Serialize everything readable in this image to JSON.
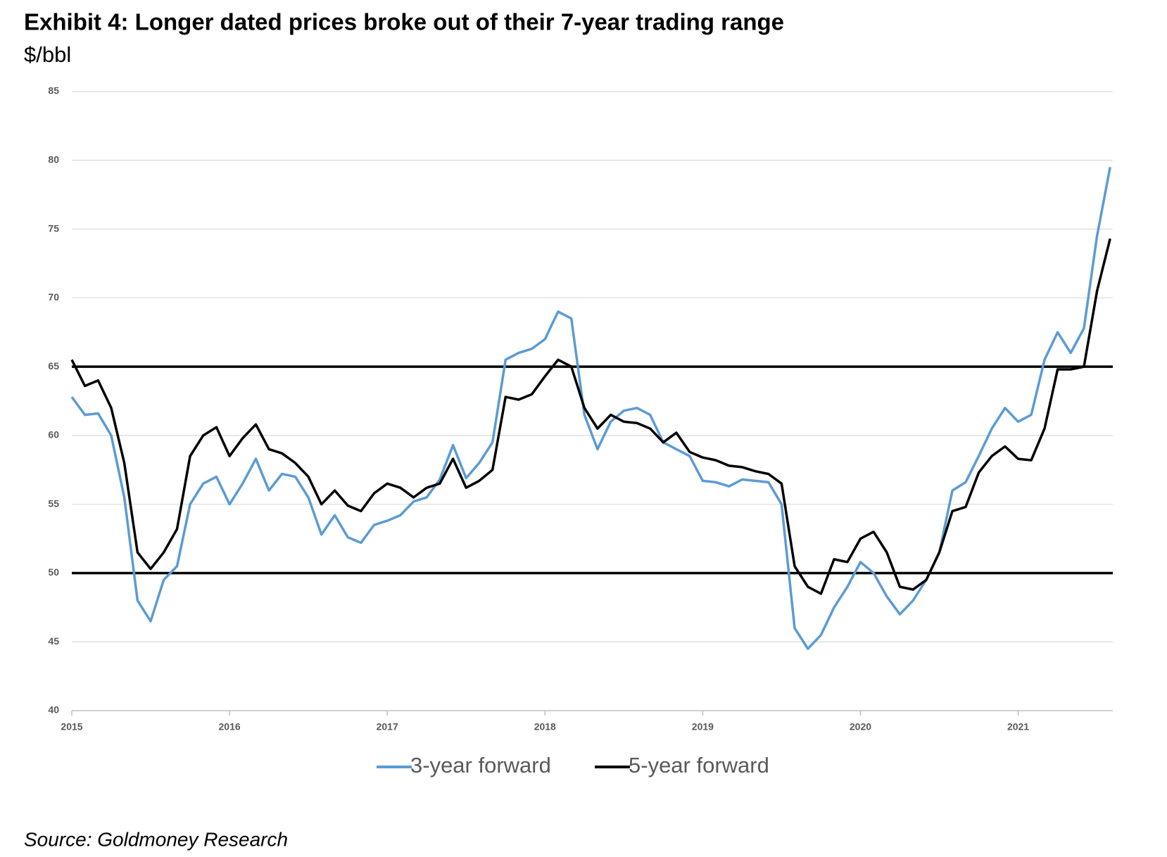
{
  "chart_data": {
    "type": "line",
    "title": "Exhibit 4: Longer dated prices broke out of their 7-year trading range",
    "subtitle": "$/bbl",
    "source": "Source: Goldmoney Research",
    "x": [
      2015,
      2015.083,
      2015.167,
      2015.25,
      2015.333,
      2015.417,
      2015.5,
      2015.583,
      2015.667,
      2015.75,
      2015.833,
      2015.917,
      2016,
      2016.083,
      2016.167,
      2016.25,
      2016.333,
      2016.417,
      2016.5,
      2016.583,
      2016.667,
      2016.75,
      2016.833,
      2016.917,
      2017,
      2017.083,
      2017.167,
      2017.25,
      2017.333,
      2017.417,
      2017.5,
      2017.583,
      2017.667,
      2017.75,
      2017.833,
      2017.917,
      2018,
      2018.083,
      2018.167,
      2018.25,
      2018.333,
      2018.417,
      2018.5,
      2018.583,
      2018.667,
      2018.75,
      2018.833,
      2018.917,
      2019,
      2019.083,
      2019.167,
      2019.25,
      2019.333,
      2019.417,
      2019.5,
      2019.583,
      2019.667,
      2019.75,
      2019.833,
      2019.917,
      2020,
      2020.083,
      2020.167,
      2020.25,
      2020.333,
      2020.417,
      2020.5,
      2020.583,
      2020.667,
      2020.75,
      2020.833,
      2020.917,
      2021,
      2021.083,
      2021.167,
      2021.25,
      2021.333,
      2021.417,
      2021.5,
      2021.583
    ],
    "series": [
      {
        "name": "3-year forward",
        "color": "#5b9bd5",
        "values": [
          62.8,
          61.5,
          61.6,
          60.0,
          55.5,
          48.0,
          46.5,
          49.5,
          50.5,
          55.0,
          56.5,
          57.0,
          55.0,
          56.5,
          58.3,
          56.0,
          57.2,
          57.0,
          55.5,
          52.8,
          54.2,
          52.6,
          52.2,
          53.5,
          53.8,
          54.2,
          55.2,
          55.5,
          56.8,
          59.3,
          56.9,
          58.0,
          59.5,
          65.5,
          66.0,
          66.3,
          67.0,
          69.0,
          68.5,
          61.5,
          59.0,
          61.0,
          61.8,
          62.0,
          61.5,
          59.5,
          59.0,
          58.5,
          56.7,
          56.6,
          56.3,
          56.8,
          56.7,
          56.6,
          55.0,
          46.0,
          44.5,
          45.5,
          47.5,
          49.0,
          50.8,
          50.0,
          48.3,
          47.0,
          48.0,
          49.5,
          51.5,
          56.0,
          56.6,
          58.5,
          60.5,
          62.0,
          61.0,
          61.5,
          65.5,
          67.5,
          66.0,
          67.8,
          74.5,
          79.5
        ]
      },
      {
        "name": "5-year forward",
        "color": "#000000",
        "values": [
          65.5,
          63.6,
          64.0,
          62.0,
          58.0,
          51.5,
          50.3,
          51.5,
          53.2,
          58.5,
          60.0,
          60.6,
          58.5,
          59.8,
          60.8,
          59.0,
          58.7,
          58.0,
          57.0,
          55.0,
          56.0,
          54.9,
          54.5,
          55.8,
          56.5,
          56.2,
          55.5,
          56.2,
          56.5,
          58.3,
          56.2,
          56.7,
          57.5,
          62.8,
          62.6,
          63.0,
          64.3,
          65.5,
          65.0,
          62.0,
          60.5,
          61.5,
          61.0,
          60.9,
          60.5,
          59.5,
          60.2,
          58.8,
          58.4,
          58.2,
          57.8,
          57.7,
          57.4,
          57.2,
          56.5,
          50.5,
          49.0,
          48.5,
          51.0,
          50.8,
          52.5,
          53.0,
          51.5,
          49.0,
          48.8,
          49.5,
          51.5,
          54.5,
          54.8,
          57.3,
          58.5,
          59.2,
          58.3,
          58.2,
          60.5,
          64.8,
          64.8,
          65.0,
          70.5,
          74.3
        ]
      }
    ],
    "hlines": [
      65,
      50
    ],
    "xlim": [
      2015,
      2021.6
    ],
    "xticks": [
      2015,
      2016,
      2017,
      2018,
      2019,
      2020,
      2021
    ],
    "ylim": [
      40,
      85
    ],
    "yticks": [
      40,
      45,
      50,
      55,
      60,
      65,
      70,
      75,
      80,
      85
    ],
    "grid": true,
    "legend": "bottom"
  }
}
